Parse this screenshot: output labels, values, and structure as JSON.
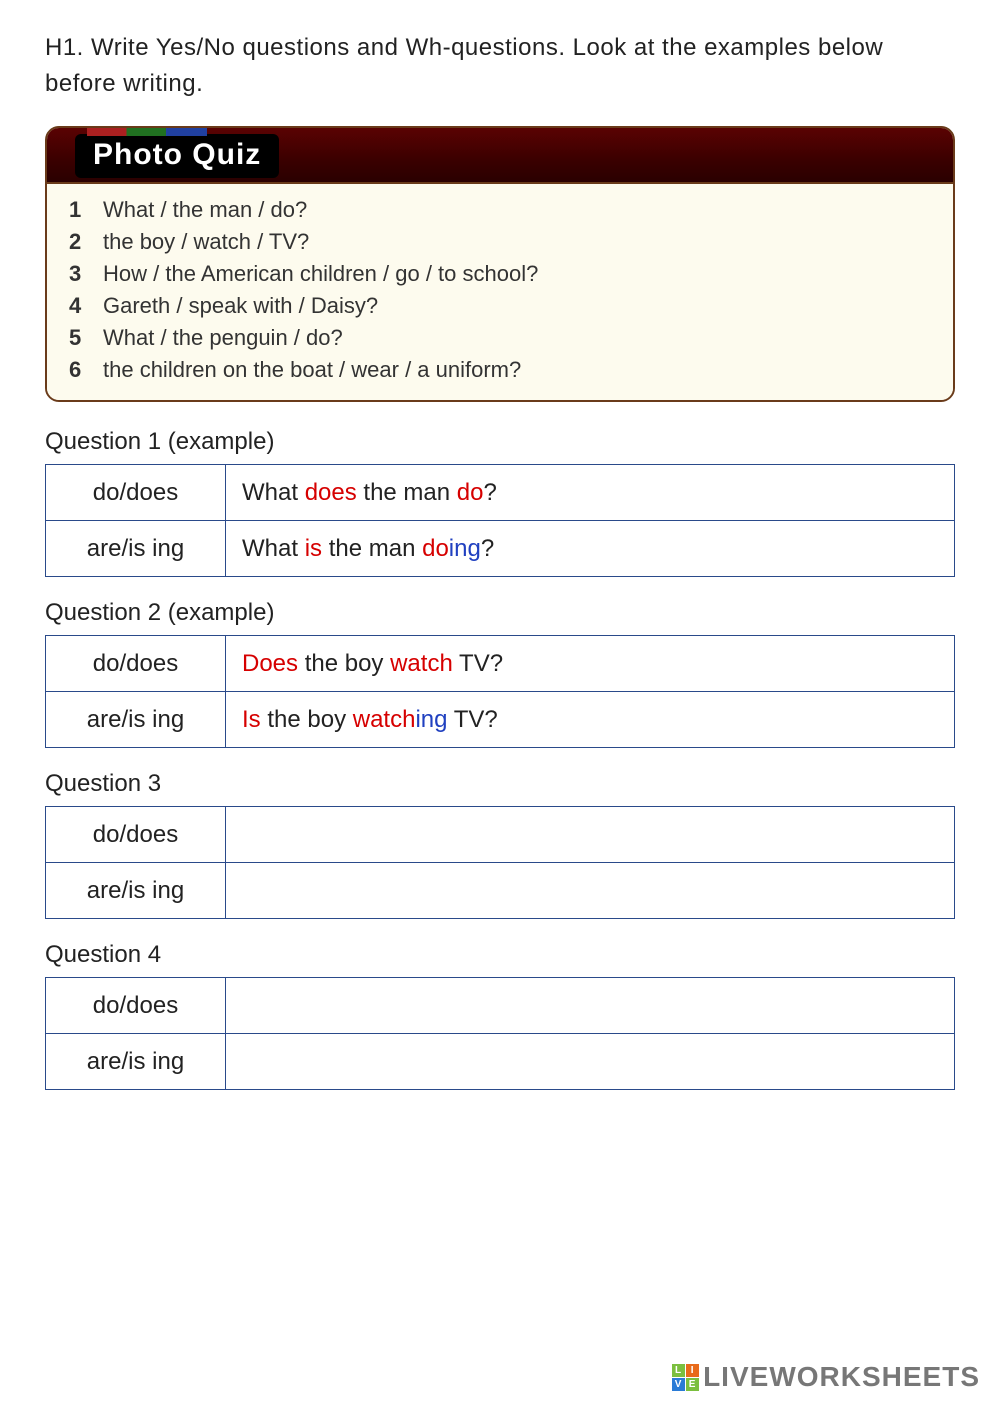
{
  "instruction": "H1. Write Yes/No questions and Wh-questions. Look at the examples below before writing.",
  "photo_quiz": {
    "title": "Photo Quiz",
    "items": [
      {
        "n": "1",
        "text": "What / the man / do?"
      },
      {
        "n": "2",
        "text": "the boy / watch / TV?"
      },
      {
        "n": "3",
        "text": "How / the American children / go / to school?"
      },
      {
        "n": "4",
        "text": "Gareth / speak with / Daisy?"
      },
      {
        "n": "5",
        "text": "What / the penguin / do?"
      },
      {
        "n": "6",
        "text": "the children on the boat / wear / a uniform?"
      }
    ]
  },
  "row_labels": {
    "do": "do/does",
    "ing": "are/is ing"
  },
  "questions": [
    {
      "heading": "Question 1 (example)",
      "do_parts": [
        {
          "t": "What ",
          "c": ""
        },
        {
          "t": "does",
          "c": "t-red"
        },
        {
          "t": " the man ",
          "c": ""
        },
        {
          "t": "do",
          "c": "t-red"
        },
        {
          "t": "?",
          "c": ""
        }
      ],
      "ing_parts": [
        {
          "t": "What ",
          "c": ""
        },
        {
          "t": "is",
          "c": "t-red"
        },
        {
          "t": " the man ",
          "c": ""
        },
        {
          "t": "do",
          "c": "t-red"
        },
        {
          "t": "ing",
          "c": "t-blue"
        },
        {
          "t": "?",
          "c": ""
        }
      ]
    },
    {
      "heading": "Question 2 (example)",
      "do_parts": [
        {
          "t": "Does",
          "c": "t-red"
        },
        {
          "t": " the boy ",
          "c": ""
        },
        {
          "t": "watch",
          "c": "t-red"
        },
        {
          "t": " TV?",
          "c": ""
        }
      ],
      "ing_parts": [
        {
          "t": "Is",
          "c": "t-red"
        },
        {
          "t": " the boy ",
          "c": ""
        },
        {
          "t": "watch",
          "c": "t-red"
        },
        {
          "t": "ing",
          "c": "t-blue"
        },
        {
          "t": " TV?",
          "c": ""
        }
      ]
    },
    {
      "heading": "Question 3",
      "do_parts": [],
      "ing_parts": []
    },
    {
      "heading": "Question 4",
      "do_parts": [],
      "ing_parts": []
    }
  ],
  "watermark": {
    "text": "LIVEWORKSHEETS",
    "cells": [
      {
        "bg": "#7bbf3f",
        "ch": "L"
      },
      {
        "bg": "#e86a1a",
        "ch": "I"
      },
      {
        "bg": "#2a7bd6",
        "ch": "V"
      },
      {
        "bg": "#7bbf3f",
        "ch": "E"
      }
    ]
  },
  "colors": {
    "border": "#2a4a8a",
    "red": "#d60000",
    "blue": "#2040c0",
    "quiz_border": "#6a3b1a",
    "quiz_bg": "#fdfbee"
  }
}
